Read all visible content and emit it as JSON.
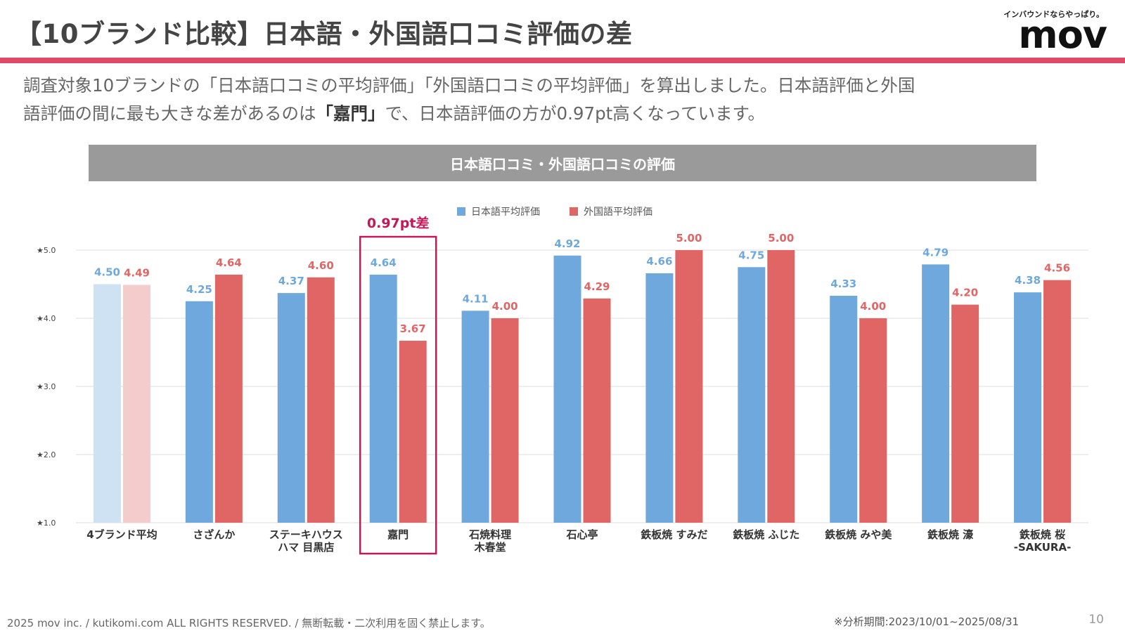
{
  "header": {
    "title": "【10ブランド比較】日本語・外国語口コミ評価の差",
    "logo_tagline": "インバウンドならやっぱり。",
    "logo": "mov"
  },
  "intro": {
    "line1": "調査対象10ブランドの「日本語口コミの平均評価」「外国語口コミの平均評価」を算出しました。日本語評価と外国",
    "line2_pre": "語評価の間に最も大きな差があるのは",
    "line2_bold": "「嘉門」",
    "line2_post": "で、日本語評価の方が0.97pt高くなっています。"
  },
  "chart_header": "日本語口コミ・外国語口コミの評価",
  "chart_data": {
    "type": "bar",
    "categories": [
      "4ブランド平均",
      "さざんか",
      "ステーキハウス\nハマ 目黒店",
      "嘉門",
      "石焼料理\n木春堂",
      "石心亭",
      "鉄板焼 すみだ",
      "鉄板焼 ふじた",
      "鉄板焼 みや美",
      "鉄板焼 濠",
      "鉄板焼 桜\n-SAKURA-"
    ],
    "series": [
      {
        "name": "日本語平均評価",
        "values": [
          4.5,
          4.25,
          4.37,
          4.64,
          4.11,
          4.92,
          4.66,
          4.75,
          4.33,
          4.79,
          4.38
        ]
      },
      {
        "name": "外国語平均評価",
        "values": [
          4.49,
          4.64,
          4.6,
          3.67,
          4.0,
          4.29,
          5.0,
          5.0,
          4.0,
          4.2,
          4.56
        ]
      }
    ],
    "value_labels": [
      [
        "4.50",
        "4.25",
        "4.37",
        "4.64",
        "4.11",
        "4.92",
        "4.66",
        "4.75",
        "4.33",
        "4.79",
        "4.38"
      ],
      [
        "4.49",
        "4.64",
        "4.60",
        "3.67",
        "4.00",
        "4.29",
        "5.00",
        "5.00",
        "4.00",
        "4.20",
        "4.56"
      ]
    ],
    "y_ticks": [
      "★1.0",
      "★2.0",
      "★3.0",
      "★4.0",
      "★5.0"
    ],
    "ylim": [
      1.0,
      5.0
    ],
    "grid": true,
    "legend_position": "top-center",
    "highlight": {
      "category_index": 3,
      "label": "0.97pt差"
    },
    "colors": {
      "jp": "#6fa8dc",
      "fr": "#e06666",
      "jp_light": "#cfe2f3",
      "fr_light": "#f4cccc",
      "highlight": "#c2185b",
      "grid": "#dddddd"
    }
  },
  "footer": {
    "copyright": "2025 mov inc. / kutikomi.com ALL RIGHTS RESERVED. / 無断転載・二次利用を固く禁止します。",
    "period": "※分析期間:2023/10/01~2025/08/31",
    "page": "10"
  }
}
